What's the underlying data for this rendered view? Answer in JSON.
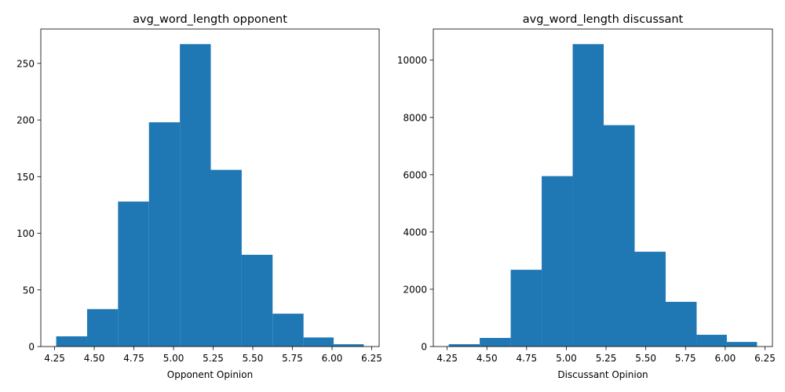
{
  "chart_data": [
    {
      "type": "bar",
      "title": "avg_word_length opponent",
      "xlabel": "Opponent Opinion",
      "ylabel": "",
      "bin_edges": [
        4.26,
        4.455,
        4.65,
        4.845,
        5.04,
        5.235,
        5.43,
        5.625,
        5.82,
        6.01,
        6.2
      ],
      "values": [
        9,
        33,
        128,
        198,
        267,
        156,
        81,
        29,
        8,
        2
      ],
      "xlim": [
        4.163,
        6.297
      ],
      "ylim": [
        0,
        280.35
      ],
      "xticks": [
        4.25,
        4.5,
        4.75,
        5.0,
        5.25,
        5.5,
        5.75,
        6.0,
        6.25
      ],
      "xtick_labels": [
        "4.25",
        "4.50",
        "4.75",
        "5.00",
        "5.25",
        "5.50",
        "5.75",
        "6.00",
        "6.25"
      ],
      "yticks": [
        0,
        50,
        100,
        150,
        200,
        250
      ],
      "ytick_labels": [
        "0",
        "50",
        "100",
        "150",
        "200",
        "250"
      ],
      "color": "#1f77b4",
      "grid": false
    },
    {
      "type": "bar",
      "title": "avg_word_length discussant",
      "xlabel": "Discussant Opinion",
      "ylabel": "",
      "bin_edges": [
        4.26,
        4.455,
        4.65,
        4.845,
        5.04,
        5.235,
        5.43,
        5.625,
        5.82,
        6.01,
        6.2
      ],
      "values": [
        80,
        300,
        2680,
        5950,
        10560,
        7730,
        3310,
        1560,
        410,
        160
      ],
      "xlim": [
        4.163,
        6.297
      ],
      "ylim": [
        0,
        11088
      ],
      "xticks": [
        4.25,
        4.5,
        4.75,
        5.0,
        5.25,
        5.5,
        5.75,
        6.0,
        6.25
      ],
      "xtick_labels": [
        "4.25",
        "4.50",
        "4.75",
        "5.00",
        "5.25",
        "5.50",
        "5.75",
        "6.00",
        "6.25"
      ],
      "yticks": [
        0,
        2000,
        4000,
        6000,
        8000,
        10000
      ],
      "ytick_labels": [
        "0",
        "2000",
        "4000",
        "6000",
        "8000",
        "10000"
      ],
      "color": "#1f77b4",
      "grid": false
    }
  ]
}
